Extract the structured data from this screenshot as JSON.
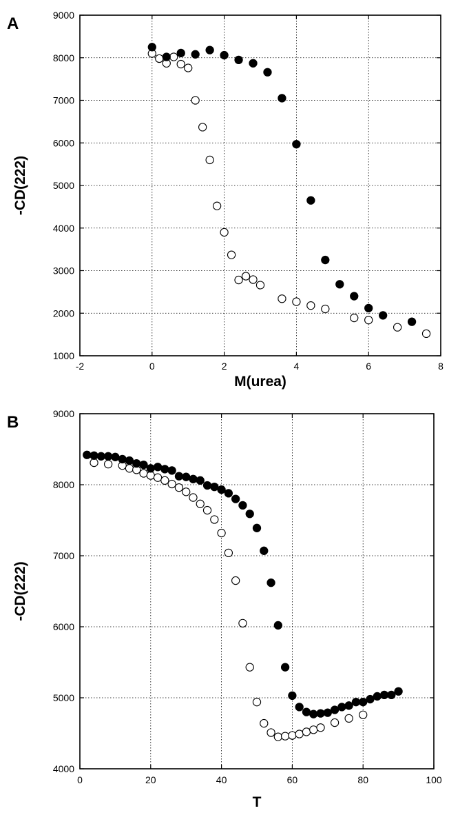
{
  "chart_data": [
    {
      "type": "scatter",
      "panel_label": "A",
      "title": "",
      "xlabel": "M(urea)",
      "ylabel": "-CD(222)",
      "xlim": [
        -2,
        8
      ],
      "ylim": [
        1000,
        9000
      ],
      "xticks": [
        "-2",
        "0",
        "2",
        "4",
        "6",
        "8"
      ],
      "yticks": [
        "1000",
        "2000",
        "3000",
        "4000",
        "5000",
        "6000",
        "7000",
        "8000",
        "9000"
      ],
      "grid": true,
      "series": [
        {
          "marker": "filled-circle",
          "x": [
            0,
            0.4,
            0.8,
            1.2,
            1.6,
            2.0,
            2.4,
            2.8,
            3.2,
            3.6,
            4.0,
            4.4,
            4.8,
            5.2,
            5.6,
            6.0,
            6.4,
            7.2
          ],
          "y": [
            8250,
            8020,
            8110,
            8080,
            8180,
            8060,
            7950,
            7870,
            7660,
            7050,
            5970,
            4650,
            3250,
            2680,
            2400,
            2120,
            1950,
            1800
          ]
        },
        {
          "marker": "open-circle",
          "x": [
            0,
            0.2,
            0.4,
            0.6,
            0.8,
            1.0,
            1.2,
            1.4,
            1.6,
            1.8,
            2.0,
            2.2,
            2.4,
            2.6,
            2.8,
            3.0,
            3.6,
            4.0,
            4.4,
            4.8,
            5.6,
            6.0,
            6.8,
            7.6
          ],
          "y": [
            8100,
            7980,
            7870,
            8020,
            7850,
            7760,
            7000,
            6370,
            5600,
            4520,
            3900,
            3370,
            2780,
            2870,
            2790,
            2660,
            2340,
            2270,
            2180,
            2100,
            1890,
            1840,
            1670,
            1520
          ]
        }
      ]
    },
    {
      "type": "scatter",
      "panel_label": "B",
      "title": "",
      "xlabel": "T",
      "ylabel": "-CD(222)",
      "xlim": [
        0,
        100
      ],
      "ylim": [
        4000,
        9000
      ],
      "xticks": [
        "0",
        "20",
        "40",
        "60",
        "80",
        "100"
      ],
      "yticks": [
        "4000",
        "5000",
        "6000",
        "7000",
        "8000",
        "9000"
      ],
      "grid": true,
      "series": [
        {
          "marker": "filled-circle",
          "x": [
            2,
            4,
            6,
            8,
            10,
            12,
            14,
            16,
            18,
            20,
            22,
            24,
            26,
            28,
            30,
            32,
            34,
            36,
            38,
            40,
            42,
            44,
            46,
            48,
            50,
            52,
            54,
            56,
            58,
            60,
            62,
            64,
            66,
            68,
            70,
            72,
            74,
            76,
            78,
            80,
            82,
            84,
            86,
            88,
            90
          ],
          "y": [
            8420,
            8410,
            8400,
            8400,
            8390,
            8360,
            8340,
            8300,
            8280,
            8230,
            8250,
            8220,
            8200,
            8120,
            8110,
            8080,
            8060,
            7990,
            7970,
            7930,
            7880,
            7800,
            7710,
            7590,
            7390,
            7070,
            6620,
            6020,
            5430,
            5030,
            4870,
            4800,
            4770,
            4780,
            4790,
            4830,
            4870,
            4890,
            4940,
            4940,
            4980,
            5020,
            5040,
            5040,
            5090
          ]
        },
        {
          "marker": "open-circle",
          "x": [
            4,
            8,
            12,
            14,
            16,
            18,
            20,
            22,
            24,
            26,
            28,
            30,
            32,
            34,
            36,
            38,
            40,
            42,
            44,
            46,
            48,
            50,
            52,
            54,
            56,
            58,
            60,
            62,
            64,
            66,
            68,
            72,
            76,
            80
          ],
          "y": [
            8310,
            8290,
            8270,
            8230,
            8210,
            8160,
            8130,
            8100,
            8060,
            8010,
            7960,
            7900,
            7820,
            7730,
            7640,
            7510,
            7320,
            7040,
            6650,
            6050,
            5430,
            4940,
            4640,
            4510,
            4450,
            4460,
            4470,
            4490,
            4520,
            4550,
            4580,
            4650,
            4710,
            4760
          ]
        }
      ]
    }
  ]
}
